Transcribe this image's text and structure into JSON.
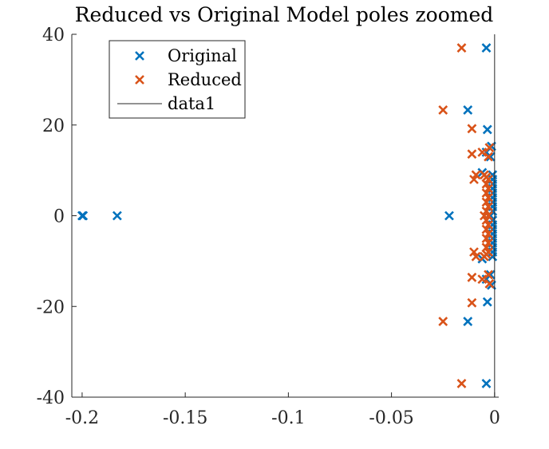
{
  "chart_data": {
    "type": "scatter",
    "title": "Reduced vs Original Model poles zoomed",
    "xlabel": "",
    "ylabel": "",
    "xlim": [
      -0.205,
      0.002
    ],
    "ylim": [
      -40,
      40
    ],
    "xticks": [
      -0.2,
      -0.15,
      -0.1,
      -0.05,
      0
    ],
    "xtick_labels": [
      "-0.2",
      "-0.15",
      "-0.1",
      "-0.05",
      "0"
    ],
    "yticks": [
      -40,
      -20,
      0,
      20,
      40
    ],
    "ytick_labels": [
      "-40",
      "-20",
      "0",
      "20",
      "40"
    ],
    "grid": false,
    "legend": {
      "location": "top-left",
      "entries": [
        "Original",
        "Reduced",
        "data1"
      ]
    },
    "colors": {
      "original": "#0072BD",
      "reduced": "#D95319",
      "line": "#262626"
    },
    "series": [
      {
        "name": "Original",
        "marker": "x",
        "points": [
          [
            -0.2,
            0
          ],
          [
            -0.1995,
            0
          ],
          [
            -0.183,
            0
          ],
          [
            -0.022,
            0
          ],
          [
            -0.004,
            37
          ],
          [
            -0.004,
            -37
          ],
          [
            -0.013,
            23.3
          ],
          [
            -0.013,
            -23.3
          ],
          [
            -0.0035,
            19
          ],
          [
            -0.0035,
            -19
          ],
          [
            -0.0015,
            15.3
          ],
          [
            -0.0015,
            -15.3
          ],
          [
            -0.004,
            14
          ],
          [
            -0.004,
            -14
          ],
          [
            -0.002,
            13
          ],
          [
            -0.002,
            -13
          ],
          [
            -0.006,
            9.5
          ],
          [
            -0.006,
            -9.5
          ],
          [
            -0.001,
            9
          ],
          [
            -0.001,
            -9
          ],
          [
            -0.001,
            8
          ],
          [
            -0.001,
            -8
          ],
          [
            -0.001,
            7
          ],
          [
            -0.001,
            -7
          ],
          [
            -0.001,
            6
          ],
          [
            -0.001,
            -6
          ],
          [
            -0.001,
            5
          ],
          [
            -0.001,
            -5
          ],
          [
            -0.001,
            4
          ],
          [
            -0.001,
            -4
          ],
          [
            -0.001,
            3
          ],
          [
            -0.001,
            -3
          ],
          [
            -0.001,
            2
          ],
          [
            -0.001,
            -2
          ],
          [
            -0.001,
            1
          ],
          [
            -0.001,
            -1
          ],
          [
            -0.002,
            0
          ]
        ]
      },
      {
        "name": "Reduced",
        "marker": "x",
        "points": [
          [
            -0.016,
            37
          ],
          [
            -0.016,
            -37
          ],
          [
            -0.025,
            23.3
          ],
          [
            -0.025,
            -23.3
          ],
          [
            -0.011,
            19.2
          ],
          [
            -0.011,
            -19.2
          ],
          [
            -0.011,
            13.6
          ],
          [
            -0.011,
            -13.6
          ],
          [
            -0.006,
            14
          ],
          [
            -0.006,
            -14
          ],
          [
            -0.0025,
            15
          ],
          [
            -0.0025,
            -15
          ],
          [
            -0.003,
            13
          ],
          [
            -0.003,
            -13
          ],
          [
            -0.009,
            9
          ],
          [
            -0.009,
            -9
          ],
          [
            -0.01,
            8
          ],
          [
            -0.01,
            -8
          ],
          [
            -0.005,
            9
          ],
          [
            -0.005,
            -9
          ],
          [
            -0.004,
            8.5
          ],
          [
            -0.004,
            -8.5
          ],
          [
            -0.003,
            8
          ],
          [
            -0.003,
            -8
          ],
          [
            -0.004,
            7
          ],
          [
            -0.004,
            -7
          ],
          [
            -0.003,
            6
          ],
          [
            -0.003,
            -6
          ],
          [
            -0.004,
            5
          ],
          [
            -0.004,
            -5
          ],
          [
            -0.003,
            4
          ],
          [
            -0.003,
            -4
          ],
          [
            -0.004,
            3
          ],
          [
            -0.004,
            -3
          ],
          [
            -0.003,
            2
          ],
          [
            -0.003,
            -2
          ],
          [
            -0.004,
            1
          ],
          [
            -0.004,
            -1
          ],
          [
            -0.005,
            0
          ],
          [
            -0.003,
            0
          ]
        ]
      },
      {
        "name": "data1",
        "type": "line",
        "points": [
          [
            0,
            -40
          ],
          [
            0,
            40
          ]
        ]
      }
    ]
  }
}
